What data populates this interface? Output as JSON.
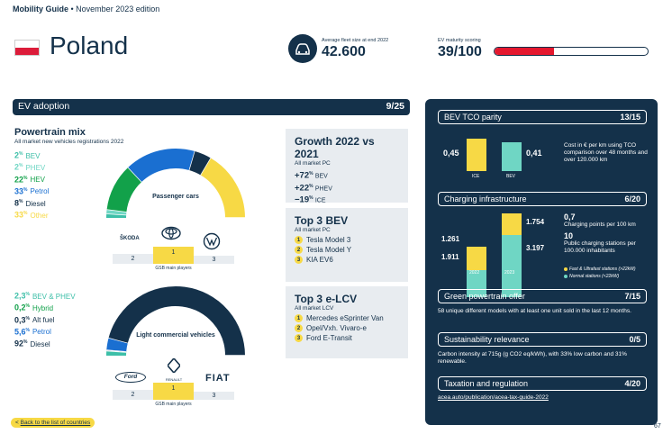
{
  "header": {
    "guide": "Mobility Guide",
    "edition": "November 2023 edition",
    "country": "Poland",
    "fleet_label": "Average fleet size at end 2022",
    "fleet_value": "42.600",
    "maturity_label": "EV maturity scoring",
    "maturity_value": "39/100",
    "maturity_fraction": 0.39
  },
  "ev_adoption": {
    "label": "EV adoption",
    "score": "9/25"
  },
  "powertrain": {
    "title": "Powertrain mix",
    "subtitle": "All market new vehicles registrations 2022",
    "passenger": [
      {
        "value": "2",
        "label": "BEV",
        "color": "#3dbfa8"
      },
      {
        "value": "2",
        "label": "PHEV",
        "color": "#6fd6c4"
      },
      {
        "value": "22",
        "label": "HEV",
        "color": "#12a14a"
      },
      {
        "value": "33",
        "label": "Petrol",
        "color": "#1a6fd1"
      },
      {
        "value": "8",
        "label": "Diesel",
        "color": "#14314a"
      },
      {
        "value": "33",
        "label": "Other",
        "color": "#f7d945"
      }
    ],
    "passenger_center": "Passenger cars",
    "passenger_podium": [
      "2",
      "1",
      "3"
    ],
    "passenger_podium_caption": "GSB main players",
    "lcv": [
      {
        "value": "2,3",
        "label": "BEV & PHEV",
        "color": "#3dbfa8"
      },
      {
        "value": "0,2",
        "label": "Hybrid",
        "color": "#12a14a"
      },
      {
        "value": "0,3",
        "label": "Alt fuel",
        "color": "#14314a"
      },
      {
        "value": "5,6",
        "label": "Petrol",
        "color": "#1a6fd1"
      },
      {
        "value": "92",
        "label": "Diesel",
        "color": "#14314a"
      }
    ],
    "lcv_center": "Light commercial vehicles",
    "lcv_podium": [
      "2",
      "1",
      "3"
    ],
    "lcv_podium_caption": "GSB main players",
    "pct": "%",
    "brands_passenger": [
      "ŠKODA",
      "TOYOTA",
      "VW"
    ],
    "brands_lcv": [
      "Ford",
      "RENAULT",
      "FIAT"
    ]
  },
  "growth": {
    "title": "Growth 2022 vs 2021",
    "subtitle": "All market PC",
    "rows": [
      {
        "value": "+72",
        "label": "BEV"
      },
      {
        "value": "+22",
        "label": "PHEV"
      },
      {
        "value": "−19",
        "label": "ICE"
      }
    ]
  },
  "top3_bev": {
    "title": "Top 3 BEV",
    "subtitle": "All market PC",
    "items": [
      "Tesla Model 3",
      "Tesla Model Y",
      "KIA EV6"
    ]
  },
  "top3_lcv": {
    "title": "Top 3 e-LCV",
    "subtitle": "All market LCV",
    "items": [
      "Mercedes eSprinter Van",
      "Opel/Vxh. Vivaro-e",
      "Ford E-Transit"
    ]
  },
  "bev_tco": {
    "label": "BEV TCO parity",
    "score": "13/15",
    "ice_value": "0,45",
    "bev_value": "0,41",
    "ice_label": "ICE",
    "bev_label": "BEV",
    "text": "Cost in € per km using TCO comparison over 48 months and over 120.000 km"
  },
  "charging": {
    "label": "Charging infrastructure",
    "score": "6/20",
    "y2022_fast": "1.261",
    "y2022_normal": "1.911",
    "y2023_fast": "1.754",
    "y2023_normal": "3.197",
    "year1": "2022",
    "year2": "2023",
    "points_value": "0,7",
    "points_text": "Charging points per 100 km",
    "stations_value": "10",
    "stations_text": "Public charging stations per 100.000 inhabitants",
    "legend_fast": "Fast & Ultrafast stations (>22kW)",
    "legend_normal": "Normal stations (<22kW)"
  },
  "green_offer": {
    "label": "Green powertrain offer",
    "score": "7/15",
    "text": "58 unique different models with at least one unit sold in the last 12 months."
  },
  "sustainability": {
    "label": "Sustainability relevance",
    "score": "0/5",
    "text": "Carbon intensity at 715g (g CO2 eq/kWh), with 33% low carbon and 31% renewable."
  },
  "taxation": {
    "label": "Taxation and regulation",
    "score": "4/20",
    "link": "acea.auto/publication/acea-tax-guide-2022"
  },
  "footer": {
    "back": "Back to the list of countries",
    "page": "67"
  }
}
